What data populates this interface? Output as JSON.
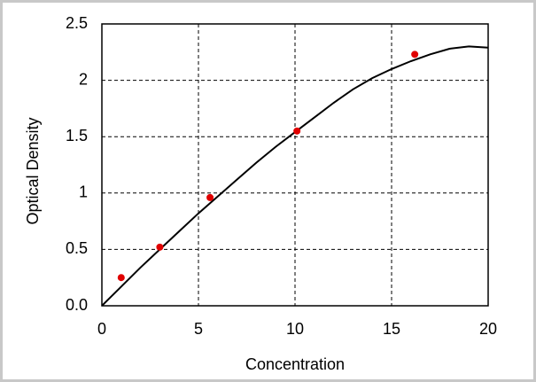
{
  "chart_data": {
    "type": "scatter",
    "x_label": "Concentration",
    "y_label": "Optical Density",
    "x": [
      1,
      3,
      5.6,
      10.1,
      16.2
    ],
    "values": [
      0.25,
      0.52,
      0.96,
      1.55,
      2.23
    ],
    "color": "#e00000",
    "curve": {
      "x": [
        0,
        1,
        2,
        3,
        4,
        5,
        6,
        7,
        8,
        9,
        10,
        11,
        12,
        13,
        14,
        15,
        16,
        17,
        18,
        19,
        20
      ],
      "values": [
        0,
        0.17,
        0.34,
        0.5,
        0.66,
        0.82,
        0.97,
        1.12,
        1.27,
        1.41,
        1.54,
        1.67,
        1.8,
        1.92,
        2.02,
        2.1,
        2.17,
        2.23,
        2.28,
        2.3,
        2.29
      ],
      "color": "#000000"
    },
    "xlim": [
      0,
      20
    ],
    "ylim": [
      0,
      2.5
    ],
    "xticks": [
      0,
      5,
      10,
      15,
      20
    ],
    "yticks": [
      {
        "value": 0,
        "label": "0.0"
      },
      0.5,
      1,
      1.5,
      2,
      2.5
    ],
    "grid": true
  }
}
